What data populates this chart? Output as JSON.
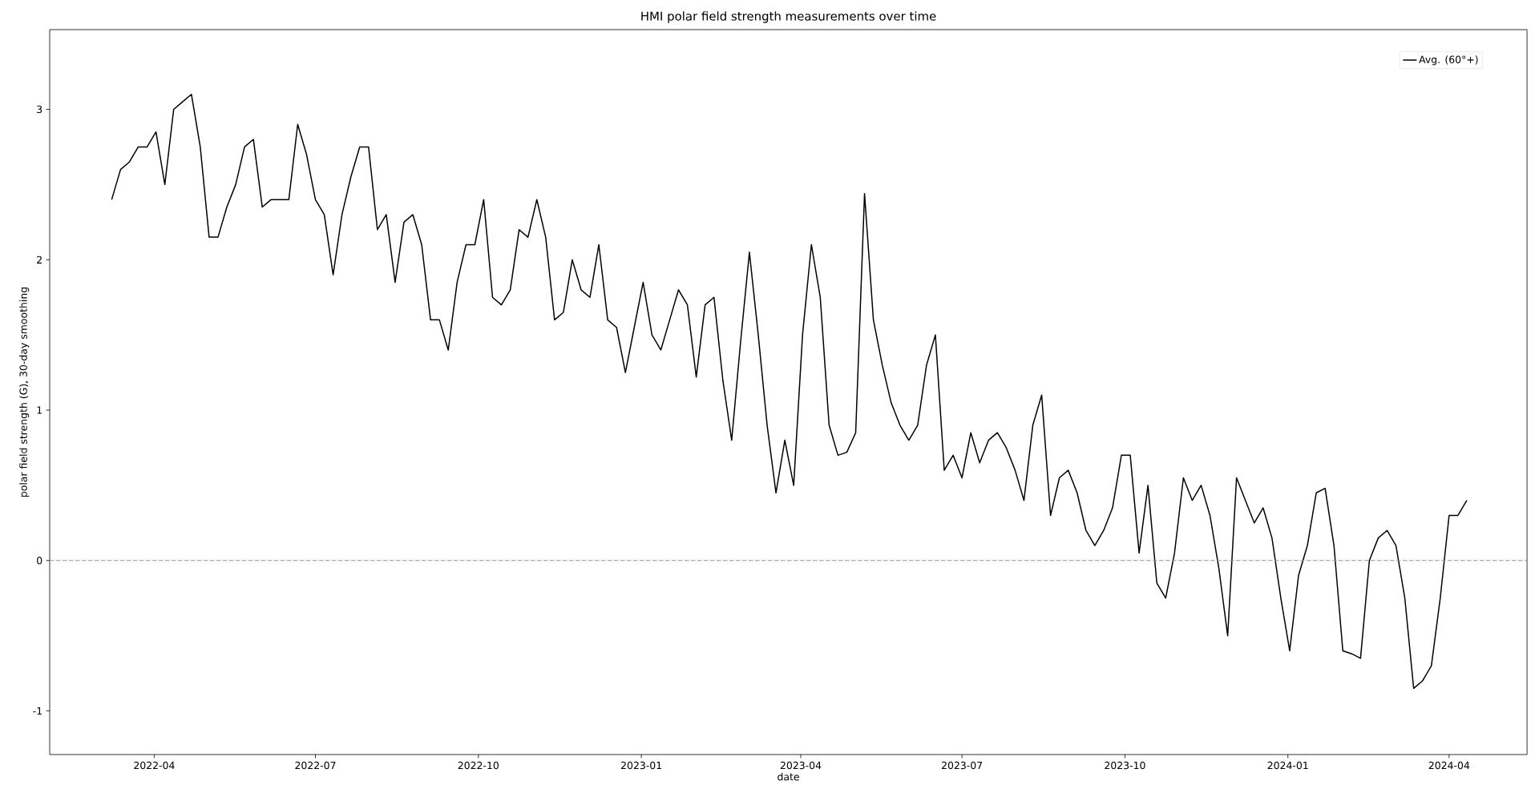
{
  "chart_data": {
    "type": "line",
    "title": "HMI polar field strength measurements over time",
    "xlabel": "date",
    "ylabel": "polar field strength (G), 30-day smoothing",
    "x": [
      "2022-03-08",
      "2022-03-13",
      "2022-03-18",
      "2022-03-23",
      "2022-03-28",
      "2022-04-02",
      "2022-04-07",
      "2022-04-12",
      "2022-04-17",
      "2022-04-22",
      "2022-04-27",
      "2022-05-02",
      "2022-05-07",
      "2022-05-12",
      "2022-05-17",
      "2022-05-22",
      "2022-05-27",
      "2022-06-01",
      "2022-06-06",
      "2022-06-11",
      "2022-06-16",
      "2022-06-21",
      "2022-06-26",
      "2022-07-01",
      "2022-07-06",
      "2022-07-11",
      "2022-07-16",
      "2022-07-21",
      "2022-07-26",
      "2022-07-31",
      "2022-08-05",
      "2022-08-10",
      "2022-08-15",
      "2022-08-20",
      "2022-08-25",
      "2022-08-30",
      "2022-09-04",
      "2022-09-09",
      "2022-09-14",
      "2022-09-19",
      "2022-09-24",
      "2022-09-29",
      "2022-10-04",
      "2022-10-09",
      "2022-10-14",
      "2022-10-19",
      "2022-10-24",
      "2022-10-29",
      "2022-11-03",
      "2022-11-08",
      "2022-11-13",
      "2022-11-18",
      "2022-11-23",
      "2022-11-28",
      "2022-12-03",
      "2022-12-08",
      "2022-12-13",
      "2022-12-18",
      "2022-12-23",
      "2022-12-28",
      "2023-01-02",
      "2023-01-07",
      "2023-01-12",
      "2023-01-17",
      "2023-01-22",
      "2023-01-27",
      "2023-02-01",
      "2023-02-06",
      "2023-02-11",
      "2023-02-16",
      "2023-02-21",
      "2023-02-26",
      "2023-03-03",
      "2023-03-08",
      "2023-03-13",
      "2023-03-18",
      "2023-03-23",
      "2023-03-28",
      "2023-04-02",
      "2023-04-07",
      "2023-04-12",
      "2023-04-17",
      "2023-04-22",
      "2023-04-27",
      "2023-05-02",
      "2023-05-07",
      "2023-05-12",
      "2023-05-17",
      "2023-05-22",
      "2023-05-27",
      "2023-06-01",
      "2023-06-06",
      "2023-06-11",
      "2023-06-16",
      "2023-06-21",
      "2023-06-26",
      "2023-07-01",
      "2023-07-06",
      "2023-07-11",
      "2023-07-16",
      "2023-07-21",
      "2023-07-26",
      "2023-07-31",
      "2023-08-05",
      "2023-08-10",
      "2023-08-15",
      "2023-08-20",
      "2023-08-25",
      "2023-08-30",
      "2023-09-04",
      "2023-09-09",
      "2023-09-14",
      "2023-09-19",
      "2023-09-24",
      "2023-09-29",
      "2023-10-04",
      "2023-10-09",
      "2023-10-14",
      "2023-10-19",
      "2023-10-24",
      "2023-10-29",
      "2023-11-03",
      "2023-11-08",
      "2023-11-13",
      "2023-11-18",
      "2023-11-23",
      "2023-11-28",
      "2023-12-03",
      "2023-12-08",
      "2023-12-13",
      "2023-12-18",
      "2023-12-23",
      "2023-12-28",
      "2024-01-02",
      "2024-01-07",
      "2024-01-12",
      "2024-01-17",
      "2024-01-22",
      "2024-01-27",
      "2024-02-01",
      "2024-02-06",
      "2024-02-11",
      "2024-02-16",
      "2024-02-21",
      "2024-02-26",
      "2024-03-02",
      "2024-03-07",
      "2024-03-12",
      "2024-03-17",
      "2024-03-22",
      "2024-03-27",
      "2024-04-01",
      "2024-04-06",
      "2024-04-11"
    ],
    "series": [
      {
        "name": "Avg. (60°+)",
        "color": "#000000",
        "values": [
          2.4,
          2.6,
          2.65,
          2.75,
          2.75,
          2.85,
          2.5,
          3.0,
          3.05,
          3.1,
          2.75,
          2.15,
          2.15,
          2.35,
          2.5,
          2.75,
          2.8,
          2.35,
          2.4,
          2.4,
          2.4,
          2.9,
          2.7,
          2.4,
          2.3,
          1.9,
          2.3,
          2.55,
          2.75,
          2.75,
          2.2,
          2.3,
          1.85,
          2.25,
          2.3,
          2.1,
          1.6,
          1.6,
          1.4,
          1.85,
          2.1,
          2.1,
          2.4,
          1.75,
          1.7,
          1.8,
          2.2,
          2.15,
          2.4,
          2.15,
          1.6,
          1.65,
          2.0,
          1.8,
          1.75,
          2.1,
          1.6,
          1.55,
          1.25,
          1.55,
          1.85,
          1.5,
          1.4,
          1.6,
          1.8,
          1.7,
          1.22,
          1.7,
          1.75,
          1.2,
          0.8,
          1.45,
          2.05,
          1.5,
          0.9,
          0.45,
          0.8,
          0.5,
          1.5,
          2.1,
          1.75,
          0.9,
          0.7,
          0.72,
          0.85,
          2.44,
          1.6,
          1.3,
          1.05,
          0.9,
          0.8,
          0.9,
          1.3,
          1.5,
          0.6,
          0.7,
          0.55,
          0.85,
          0.65,
          0.8,
          0.85,
          0.75,
          0.6,
          0.4,
          0.9,
          1.1,
          0.3,
          0.55,
          0.6,
          0.45,
          0.2,
          0.1,
          0.2,
          0.35,
          0.7,
          0.7,
          0.05,
          0.5,
          -0.15,
          -0.25,
          0.05,
          0.55,
          0.4,
          0.5,
          0.3,
          -0.05,
          -0.5,
          0.55,
          0.4,
          0.25,
          0.35,
          0.15,
          -0.25,
          -0.6,
          -0.1,
          0.1,
          0.45,
          0.48,
          0.1,
          -0.6,
          -0.62,
          -0.65,
          0.0,
          0.15,
          0.2,
          0.1,
          -0.25,
          -0.85,
          -0.8,
          -0.7,
          -0.25,
          0.3,
          0.3,
          0.4
        ]
      }
    ],
    "xlim": [
      "2022-02-01",
      "2024-05-15"
    ],
    "xticks": [
      "2022-04",
      "2022-07",
      "2022-10",
      "2023-01",
      "2023-04",
      "2023-07",
      "2023-10",
      "2024-01",
      "2024-04"
    ],
    "ylim": [
      -1.29,
      3.53
    ],
    "yticks": [
      -1,
      0,
      1,
      2,
      3
    ],
    "ref_lines": [
      {
        "axis": "y",
        "value": 0,
        "color": "#bf77c7",
        "line_style": "dashed"
      }
    ],
    "legend": "top right"
  }
}
